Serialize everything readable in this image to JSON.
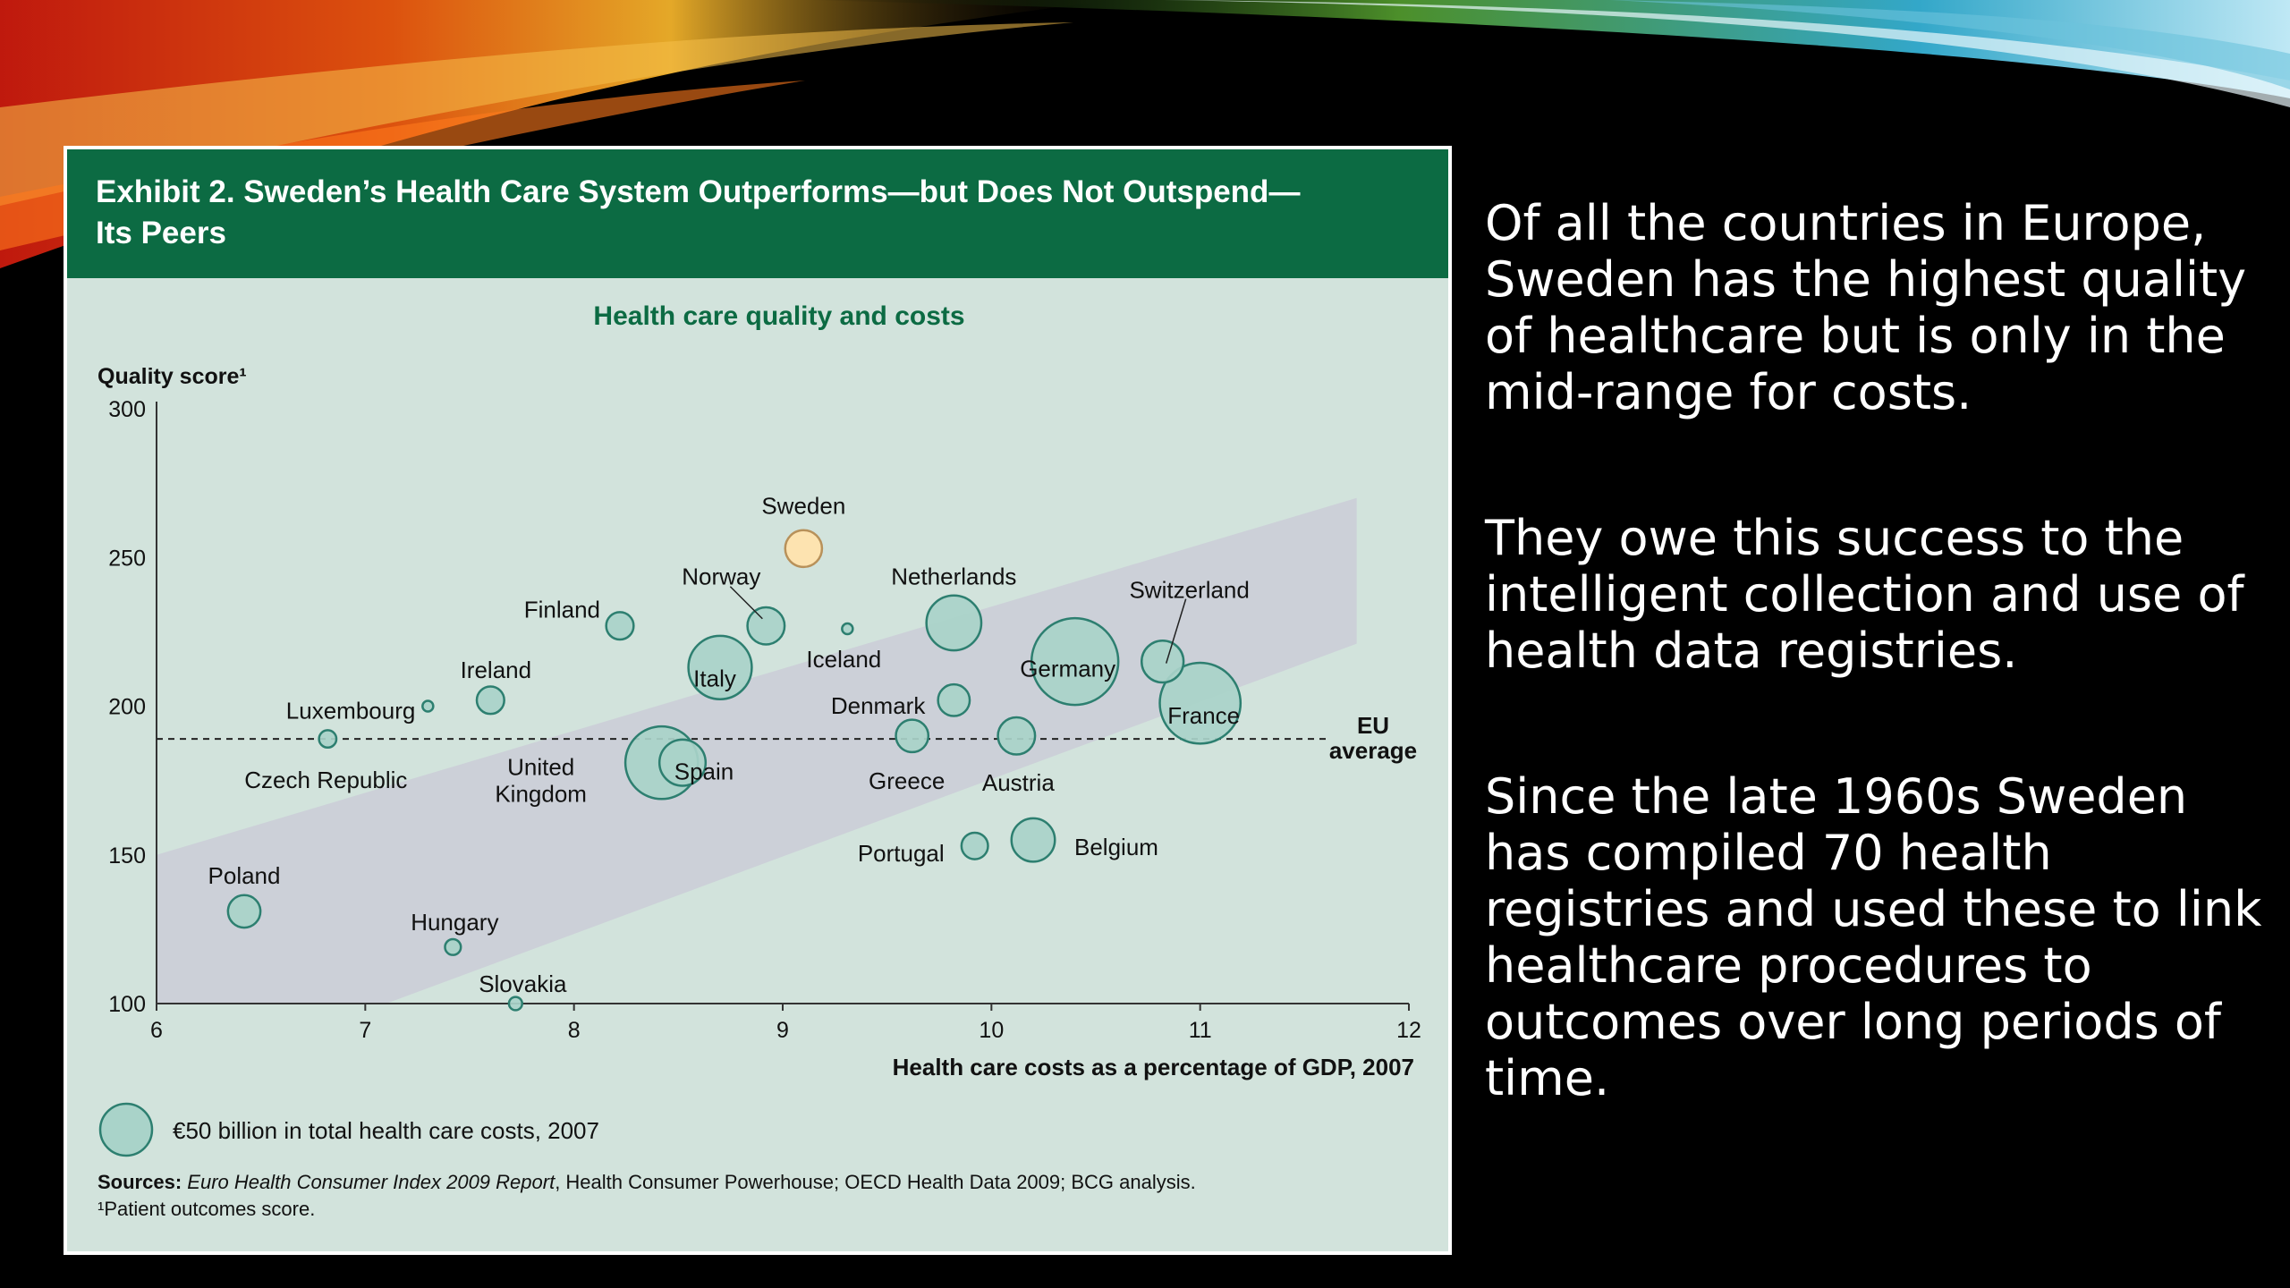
{
  "slide": {
    "paragraphs": [
      "Of all the countries in Europe, Sweden has the highest quality of healthcare but is only in the mid-range for costs.",
      "They owe this success to the intelligent collection and use of health data registries.",
      "Since the late 1960s Sweden has compiled 70 health registries and used these to link healthcare procedures to outcomes over long periods of time."
    ]
  },
  "exhibit": {
    "title_line1": "Exhibit 2. Sweden’s Health Care System Outperforms—but Does Not Outspend—",
    "title_line2": "Its Peers",
    "bubble_legend": "€50 billion in total health care costs, 2007",
    "sources_label": "Sources:",
    "sources_italic": "Euro Health Consumer Index 2009 Report",
    "sources_rest": ", Health Consumer Powerhouse; OECD Health Data 2009; BCG analysis.",
    "footnote": "¹Patient outcomes score."
  },
  "colors": {
    "header_green": "#0c6b43",
    "chart_bg": "#d2e3dc",
    "band": "#ccd0d8",
    "bubble_fill": "#a9d3c9",
    "bubble_stroke": "#2d7f70",
    "sweden_fill": "#fde3b0",
    "sweden_stroke": "#b8915a"
  },
  "chart_data": {
    "type": "scatter",
    "title": "Health care quality and costs",
    "xlabel": "Health care costs as a percentage of GDP, 2007",
    "ylabel": "Quality score¹",
    "xlim": [
      6,
      12
    ],
    "ylim": [
      100,
      300
    ],
    "xticks": [
      "6",
      "7",
      "8",
      "9",
      "10",
      "11",
      "12"
    ],
    "yticks": [
      "100",
      "150",
      "200",
      "250",
      "300"
    ],
    "reference_line": {
      "label_line1": "EU",
      "label_line2": "average",
      "y": 189
    },
    "points": [
      {
        "name": "Sweden",
        "x": 9.1,
        "y": 253,
        "size": 0.54,
        "highlight": true
      },
      {
        "name": "Netherlands",
        "x": 9.82,
        "y": 228,
        "size": 1.2
      },
      {
        "name": "Switzerland",
        "x": 10.82,
        "y": 215,
        "size": 0.7
      },
      {
        "name": "Germany",
        "x": 10.4,
        "y": 215,
        "size": 3.0
      },
      {
        "name": "France",
        "x": 11.0,
        "y": 201,
        "size": 2.6
      },
      {
        "name": "Finland",
        "x": 8.22,
        "y": 227,
        "size": 0.3
      },
      {
        "name": "Norway",
        "x": 8.92,
        "y": 227,
        "size": 0.55
      },
      {
        "name": "Iceland",
        "x": 9.31,
        "y": 226,
        "size": 0.02
      },
      {
        "name": "Italy",
        "x": 8.7,
        "y": 213,
        "size": 1.6
      },
      {
        "name": "Ireland",
        "x": 7.6,
        "y": 202,
        "size": 0.3
      },
      {
        "name": "Luxembourg",
        "x": 7.3,
        "y": 200,
        "size": 0.03
      },
      {
        "name": "Denmark",
        "x": 9.82,
        "y": 202,
        "size": 0.4
      },
      {
        "name": "Czech Republic",
        "x": 6.82,
        "y": 189,
        "size": 0.12
      },
      {
        "name": "Greece",
        "x": 9.62,
        "y": 190,
        "size": 0.42
      },
      {
        "name": "Austria",
        "x": 10.12,
        "y": 190,
        "size": 0.55
      },
      {
        "name": "United Kingdom",
        "x": 8.42,
        "y": 181,
        "size": 2.1
      },
      {
        "name": "Spain",
        "x": 8.52,
        "y": 181,
        "size": 0.85
      },
      {
        "name": "Portugal",
        "x": 9.92,
        "y": 153,
        "size": 0.28
      },
      {
        "name": "Belgium",
        "x": 10.2,
        "y": 155,
        "size": 0.75
      },
      {
        "name": "Poland",
        "x": 6.42,
        "y": 131,
        "size": 0.42
      },
      {
        "name": "Hungary",
        "x": 7.42,
        "y": 119,
        "size": 0.1
      },
      {
        "name": "Slovakia",
        "x": 7.72,
        "y": 100,
        "size": 0.07
      }
    ],
    "band_polygon": [
      [
        6,
        150
      ],
      [
        11.75,
        270
      ],
      [
        11.75,
        221
      ],
      [
        7.1,
        100
      ],
      [
        6,
        100
      ]
    ]
  }
}
